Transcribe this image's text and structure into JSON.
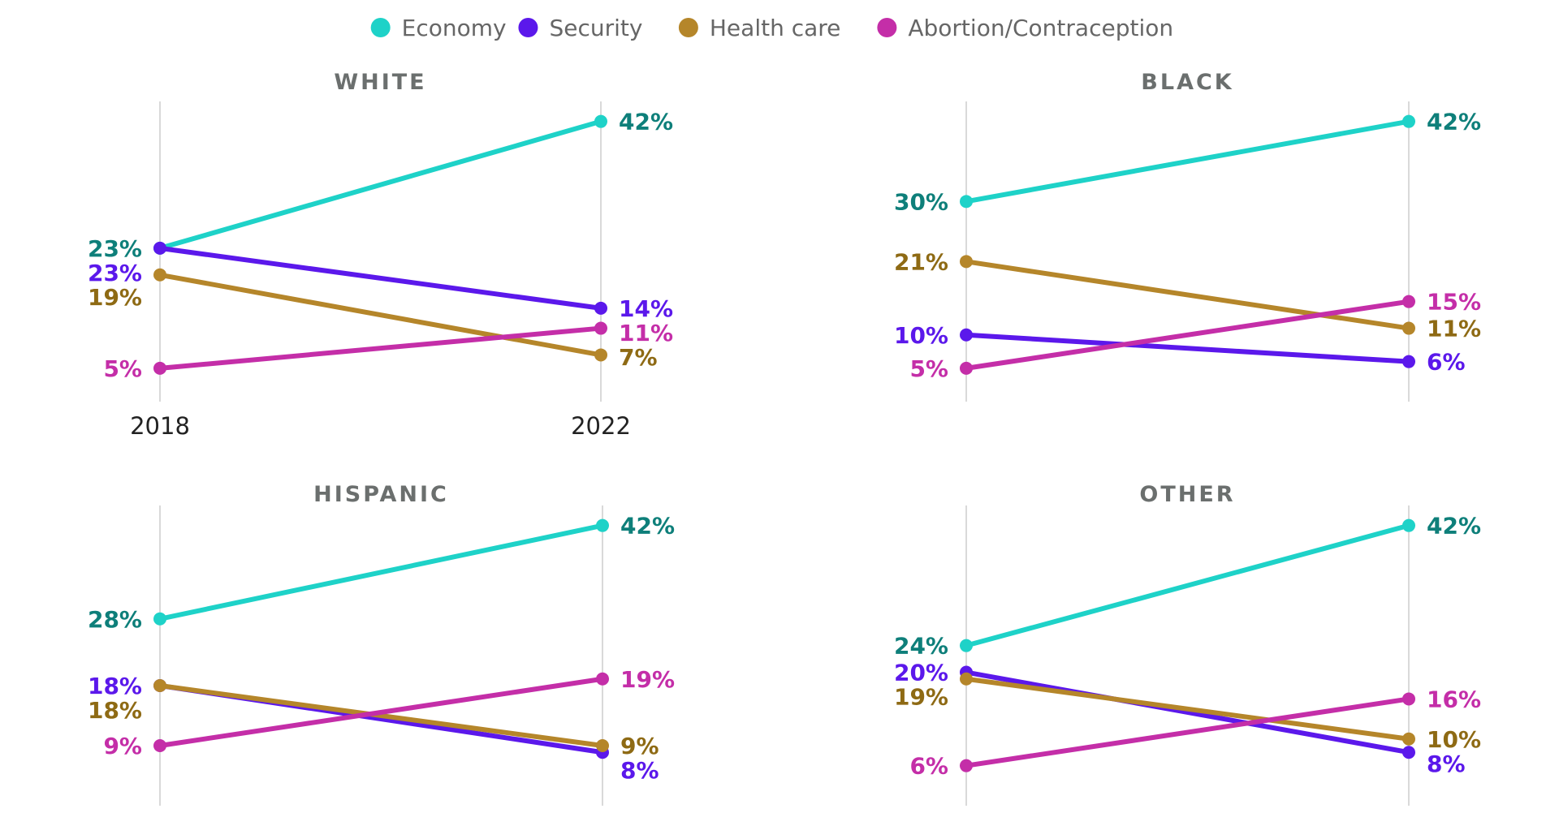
{
  "chart_data": {
    "type": "line",
    "x": [
      "2018",
      "2022"
    ],
    "ylim": [
      0,
      45
    ],
    "legend": {
      "position": "top-center",
      "items": [
        {
          "name": "Economy",
          "color": "#1ed2c8"
        },
        {
          "name": "Security",
          "color": "#5b18eb"
        },
        {
          "name": "Health care",
          "color": "#b5862a"
        },
        {
          "name": "Abortion/Contraception",
          "color": "#c42ea8"
        }
      ]
    },
    "label_colors": {
      "Economy": "#0e7f7a",
      "Security": "#5b18eb",
      "Health care": "#8e6a14",
      "Abortion/Contraception": "#c42ea8"
    },
    "panels": [
      {
        "title": "WHITE",
        "show_x_labels": true,
        "series": [
          {
            "name": "Economy",
            "values": [
              23,
              42
            ],
            "labels": [
              "23%",
              "42%"
            ]
          },
          {
            "name": "Security",
            "values": [
              23,
              14
            ],
            "labels": [
              "23%",
              "14%"
            ]
          },
          {
            "name": "Health care",
            "values": [
              19,
              7
            ],
            "labels": [
              "19%",
              "7%"
            ]
          },
          {
            "name": "Abortion/Contraception",
            "values": [
              5,
              11
            ],
            "labels": [
              "5%",
              "11%"
            ]
          }
        ]
      },
      {
        "title": "BLACK",
        "show_x_labels": false,
        "series": [
          {
            "name": "Economy",
            "values": [
              30,
              42
            ],
            "labels": [
              "30%",
              "42%"
            ]
          },
          {
            "name": "Security",
            "values": [
              10,
              6
            ],
            "labels": [
              "10%",
              "6%"
            ]
          },
          {
            "name": "Health care",
            "values": [
              21,
              11
            ],
            "labels": [
              "21%",
              "11%"
            ]
          },
          {
            "name": "Abortion/Contraception",
            "values": [
              5,
              15
            ],
            "labels": [
              "5%",
              "15%"
            ]
          }
        ]
      },
      {
        "title": "HISPANIC",
        "show_x_labels": false,
        "series": [
          {
            "name": "Economy",
            "values": [
              28,
              42
            ],
            "labels": [
              "28%",
              "42%"
            ]
          },
          {
            "name": "Security",
            "values": [
              18,
              8
            ],
            "labels": [
              "18%",
              "8%"
            ]
          },
          {
            "name": "Health care",
            "values": [
              18,
              9
            ],
            "labels": [
              "18%",
              "9%"
            ]
          },
          {
            "name": "Abortion/Contraception",
            "values": [
              9,
              19
            ],
            "labels": [
              "9%",
              "19%"
            ]
          }
        ]
      },
      {
        "title": "OTHER",
        "show_x_labels": false,
        "series": [
          {
            "name": "Economy",
            "values": [
              24,
              42
            ],
            "labels": [
              "24%",
              "42%"
            ]
          },
          {
            "name": "Security",
            "values": [
              20,
              8
            ],
            "labels": [
              "20%",
              "8%"
            ]
          },
          {
            "name": "Health care",
            "values": [
              19,
              10
            ],
            "labels": [
              "19%",
              "10%"
            ]
          },
          {
            "name": "Abortion/Contraception",
            "values": [
              6,
              16
            ],
            "labels": [
              "6%",
              "16%"
            ]
          }
        ]
      }
    ]
  }
}
